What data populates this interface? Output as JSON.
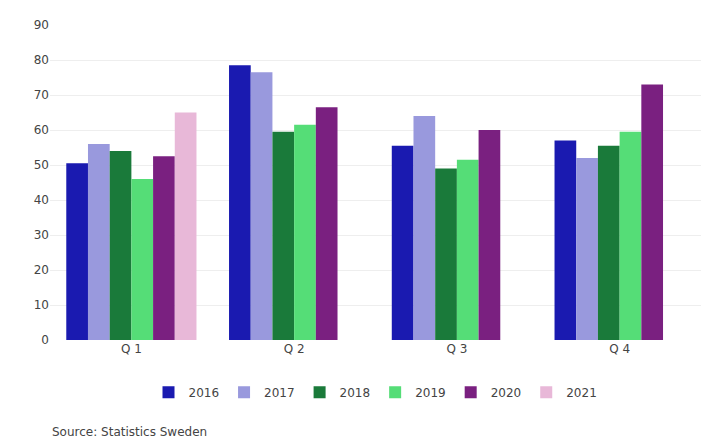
{
  "chart_data": {
    "type": "bar",
    "categories": [
      "Q 1",
      "Q 2",
      "Q 3",
      "Q 4"
    ],
    "series": [
      {
        "name": "2016",
        "color": "#1a1ab0",
        "values": [
          50.5,
          78.5,
          55.5,
          57.0
        ]
      },
      {
        "name": "2017",
        "color": "#9999dd",
        "values": [
          56.0,
          76.5,
          64.0,
          52.0
        ]
      },
      {
        "name": "2018",
        "color": "#1a7a3a",
        "values": [
          54.0,
          59.5,
          49.0,
          55.5
        ]
      },
      {
        "name": "2019",
        "color": "#55dd77",
        "values": [
          46.0,
          61.5,
          51.5,
          59.5
        ]
      },
      {
        "name": "2020",
        "color": "#7a2080",
        "values": [
          52.5,
          66.5,
          60.0,
          73.0
        ]
      },
      {
        "name": "2021",
        "color": "#e8b8d8",
        "values": [
          65.0,
          null,
          null,
          null
        ]
      }
    ],
    "ylim": [
      0,
      90
    ],
    "yticks": [
      0,
      10,
      20,
      30,
      40,
      50,
      60,
      70,
      80,
      90
    ],
    "grid": true,
    "legend": "bottom",
    "annotations": [
      "Source: Statistics Sweden"
    ]
  }
}
